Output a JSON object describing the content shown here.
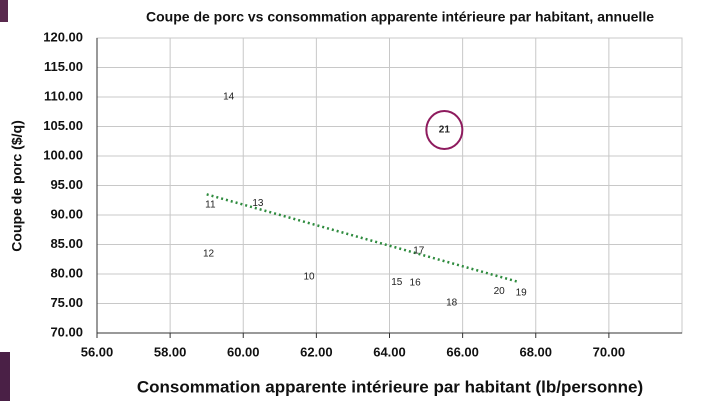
{
  "chart_data": {
    "type": "scatter",
    "title": "Coupe de porc vs consommation apparente intérieure par habitant, annuelle",
    "x_label": "Consommation apparente intérieure par habitant (lb/personne)",
    "y_label": "Coupe de porc ($/q)",
    "labels": [
      "14",
      "21",
      "11",
      "13",
      "12",
      "10",
      "17",
      "15",
      "16",
      "18",
      "20",
      "19"
    ],
    "x": [
      59.6,
      65.5,
      59.1,
      60.4,
      59.05,
      61.8,
      64.8,
      64.2,
      64.7,
      65.7,
      67.0,
      67.6
    ],
    "y": [
      110.0,
      104.4,
      91.7,
      92.0,
      83.4,
      79.5,
      83.9,
      78.6,
      78.5,
      75.1,
      77.1,
      76.8
    ],
    "colors": [
      "#222222",
      "#c0143c",
      "#222222",
      "#222222",
      "#222222",
      "#222222",
      "#222222",
      "#222222",
      "#222222",
      "#222222",
      "#222222",
      "#222222"
    ],
    "circled_color": "#8e1b5e",
    "trendline": {
      "x": [
        59.0,
        67.5
      ],
      "y": [
        93.5,
        78.7
      ],
      "color": "#2e8b3e"
    },
    "xlim": [
      56,
      72
    ],
    "ylim": [
      70,
      120
    ],
    "xticks": [
      {
        "value": 56,
        "label": "56.00"
      },
      {
        "value": 58,
        "label": "58.00"
      },
      {
        "value": 60,
        "label": "60.00"
      },
      {
        "value": 62,
        "label": "62.00"
      },
      {
        "value": 64,
        "label": "64.00"
      },
      {
        "value": 66,
        "label": "66.00"
      },
      {
        "value": 68,
        "label": "68.00"
      },
      {
        "value": 70,
        "label": "70.00"
      }
    ],
    "yticks": [
      {
        "value": 70,
        "label": "70.00"
      },
      {
        "value": 75,
        "label": "75.00"
      },
      {
        "value": 80,
        "label": "80.00"
      },
      {
        "value": 85,
        "label": "85.00"
      },
      {
        "value": 90,
        "label": "90.00"
      },
      {
        "value": 95,
        "label": "95.00"
      },
      {
        "value": 100,
        "label": "100.00"
      },
      {
        "value": 105,
        "label": "105.00"
      },
      {
        "value": 110,
        "label": "110.00"
      },
      {
        "value": 115,
        "label": "115.00"
      },
      {
        "value": 120,
        "label": "120.00"
      }
    ],
    "grid": true
  }
}
